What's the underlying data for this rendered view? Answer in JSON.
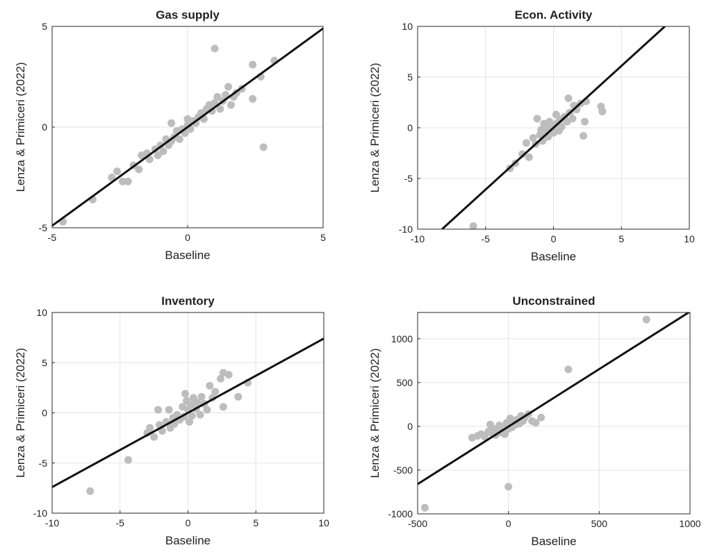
{
  "colors": {
    "points": "#bdbdbd",
    "line": "#111111",
    "grid": "#e3e3e3",
    "axes": "#262626"
  },
  "chart_data": [
    {
      "type": "scatter",
      "title": "Gas supply",
      "xlabel": "Baseline",
      "ylabel": "Lenza & Primiceri (2022)",
      "xlim": [
        -5,
        5
      ],
      "ylim": [
        -5,
        5
      ],
      "xticks": [
        -5,
        0,
        5
      ],
      "yticks": [
        -5,
        0,
        5
      ],
      "grid": true,
      "fit_line": [
        [
          -5,
          -4.9
        ],
        [
          5,
          4.9
        ]
      ],
      "points": [
        [
          -4.6,
          -4.7
        ],
        [
          -3.5,
          -3.6
        ],
        [
          -2.8,
          -2.5
        ],
        [
          -2.6,
          -2.2
        ],
        [
          -2.4,
          -2.7
        ],
        [
          -2.2,
          -2.7
        ],
        [
          -2.0,
          -1.9
        ],
        [
          -1.8,
          -2.1
        ],
        [
          -1.7,
          -1.4
        ],
        [
          -1.5,
          -1.3
        ],
        [
          -1.4,
          -1.6
        ],
        [
          -1.2,
          -1.1
        ],
        [
          -1.1,
          -1.4
        ],
        [
          -1.0,
          -0.9
        ],
        [
          -0.9,
          -1.2
        ],
        [
          -0.8,
          -0.6
        ],
        [
          -0.7,
          -0.9
        ],
        [
          -0.6,
          -0.7
        ],
        [
          -0.6,
          0.2
        ],
        [
          -0.5,
          -0.5
        ],
        [
          -0.4,
          -0.2
        ],
        [
          -0.3,
          -0.6
        ],
        [
          -0.2,
          -0.1
        ],
        [
          -0.1,
          -0.3
        ],
        [
          0.0,
          0.1
        ],
        [
          0.0,
          0.4
        ],
        [
          0.1,
          -0.1
        ],
        [
          0.2,
          0.3
        ],
        [
          0.3,
          0.2
        ],
        [
          0.4,
          0.5
        ],
        [
          0.5,
          0.7
        ],
        [
          0.6,
          0.4
        ],
        [
          0.7,
          0.9
        ],
        [
          0.8,
          1.1
        ],
        [
          0.9,
          0.8
        ],
        [
          1.0,
          3.9
        ],
        [
          1.0,
          1.2
        ],
        [
          1.1,
          1.5
        ],
        [
          1.2,
          0.9
        ],
        [
          1.3,
          1.3
        ],
        [
          1.4,
          1.6
        ],
        [
          1.5,
          2.0
        ],
        [
          1.6,
          1.1
        ],
        [
          1.7,
          1.5
        ],
        [
          1.8,
          1.7
        ],
        [
          2.0,
          1.9
        ],
        [
          2.4,
          3.1
        ],
        [
          2.4,
          1.4
        ],
        [
          2.7,
          2.5
        ],
        [
          2.8,
          -1.0
        ],
        [
          3.2,
          3.3
        ]
      ]
    },
    {
      "type": "scatter",
      "title": "Econ. Activity",
      "xlabel": "Baseline",
      "ylabel": "Lenza & Primiceri (2022)",
      "xlim": [
        -10,
        10
      ],
      "ylim": [
        -10,
        10
      ],
      "xticks": [
        -10,
        -5,
        0,
        5,
        10
      ],
      "yticks": [
        -10,
        -5,
        0,
        5,
        10
      ],
      "grid": true,
      "fit_line": [
        [
          -8.2,
          -10
        ],
        [
          8.2,
          10
        ]
      ],
      "points": [
        [
          -5.9,
          -9.7
        ],
        [
          -3.2,
          -4.0
        ],
        [
          -2.8,
          -3.5
        ],
        [
          -2.3,
          -2.6
        ],
        [
          -2.0,
          -1.5
        ],
        [
          -1.8,
          -2.9
        ],
        [
          -1.5,
          -1.0
        ],
        [
          -1.3,
          -1.6
        ],
        [
          -1.2,
          0.9
        ],
        [
          -1.0,
          -0.7
        ],
        [
          -0.9,
          -0.2
        ],
        [
          -0.8,
          -1.3
        ],
        [
          -0.7,
          0.4
        ],
        [
          -0.6,
          -0.4
        ],
        [
          -0.5,
          0.2
        ],
        [
          -0.4,
          -0.9
        ],
        [
          -0.3,
          0.6
        ],
        [
          -0.2,
          -0.1
        ],
        [
          -0.1,
          0.3
        ],
        [
          0.0,
          -0.5
        ],
        [
          0.1,
          0.2
        ],
        [
          0.2,
          1.3
        ],
        [
          0.3,
          0.5
        ],
        [
          0.4,
          -0.3
        ],
        [
          0.5,
          0.8
        ],
        [
          0.6,
          0.1
        ],
        [
          0.8,
          1.1
        ],
        [
          1.0,
          0.6
        ],
        [
          1.1,
          2.9
        ],
        [
          1.2,
          1.5
        ],
        [
          1.4,
          0.9
        ],
        [
          1.5,
          2.2
        ],
        [
          1.7,
          1.8
        ],
        [
          2.0,
          2.4
        ],
        [
          2.2,
          -0.8
        ],
        [
          2.3,
          0.6
        ],
        [
          2.4,
          2.6
        ],
        [
          3.5,
          2.1
        ],
        [
          3.6,
          1.6
        ]
      ]
    },
    {
      "type": "scatter",
      "title": "Inventory",
      "xlabel": "Baseline",
      "ylabel": "Lenza & Primiceri (2022)",
      "xlim": [
        -10,
        10
      ],
      "ylim": [
        -10,
        10
      ],
      "xticks": [
        -10,
        -5,
        0,
        5,
        10
      ],
      "yticks": [
        -10,
        -5,
        0,
        5,
        10
      ],
      "grid": true,
      "fit_line": [
        [
          -10,
          -7.4
        ],
        [
          10,
          7.4
        ]
      ],
      "points": [
        [
          -7.2,
          -7.8
        ],
        [
          -4.4,
          -4.7
        ],
        [
          -3.0,
          -2.0
        ],
        [
          -2.8,
          -1.5
        ],
        [
          -2.5,
          -2.4
        ],
        [
          -2.2,
          0.3
        ],
        [
          -2.1,
          -1.2
        ],
        [
          -1.9,
          -1.8
        ],
        [
          -1.6,
          -0.9
        ],
        [
          -1.4,
          0.3
        ],
        [
          -1.3,
          -1.5
        ],
        [
          -1.1,
          -0.5
        ],
        [
          -1.0,
          -1.1
        ],
        [
          -0.8,
          -0.2
        ],
        [
          -0.6,
          -0.7
        ],
        [
          -0.4,
          0.6
        ],
        [
          -0.3,
          -0.4
        ],
        [
          -0.2,
          1.9
        ],
        [
          -0.1,
          1.2
        ],
        [
          0.0,
          0.3
        ],
        [
          0.1,
          -0.9
        ],
        [
          0.2,
          0.8
        ],
        [
          0.3,
          -0.3
        ],
        [
          0.4,
          1.5
        ],
        [
          0.6,
          0.4
        ],
        [
          0.7,
          1.0
        ],
        [
          0.9,
          -0.2
        ],
        [
          1.0,
          1.6
        ],
        [
          1.2,
          0.9
        ],
        [
          1.4,
          0.3
        ],
        [
          1.6,
          2.7
        ],
        [
          1.8,
          1.5
        ],
        [
          2.0,
          2.1
        ],
        [
          2.4,
          3.4
        ],
        [
          2.6,
          4.0
        ],
        [
          2.6,
          0.6
        ],
        [
          3.0,
          3.8
        ],
        [
          3.7,
          1.6
        ],
        [
          4.4,
          3.0
        ]
      ]
    },
    {
      "type": "scatter",
      "title": "Unconstrained",
      "xlabel": "Baseline",
      "ylabel": "Lenza & Primiceri (2022)",
      "xlim": [
        -500,
        1000
      ],
      "ylim": [
        -1000,
        1300
      ],
      "xticks": [
        -500,
        0,
        500,
        1000
      ],
      "yticks": [
        -1000,
        -500,
        0,
        500,
        1000
      ],
      "grid": true,
      "fit_line": [
        [
          -500,
          -660
        ],
        [
          1000,
          1310
        ]
      ],
      "points": [
        [
          -460,
          -930
        ],
        [
          -200,
          -130
        ],
        [
          -170,
          -110
        ],
        [
          -150,
          -90
        ],
        [
          -130,
          -120
        ],
        [
          -110,
          -60
        ],
        [
          -100,
          20
        ],
        [
          -90,
          -80
        ],
        [
          -80,
          -30
        ],
        [
          -70,
          -100
        ],
        [
          -60,
          -50
        ],
        [
          -50,
          10
        ],
        [
          -40,
          -70
        ],
        [
          -30,
          -20
        ],
        [
          -20,
          -90
        ],
        [
          -10,
          40
        ],
        [
          0,
          -30
        ],
        [
          0,
          -690
        ],
        [
          10,
          90
        ],
        [
          20,
          -10
        ],
        [
          30,
          60
        ],
        [
          40,
          20
        ],
        [
          50,
          80
        ],
        [
          60,
          30
        ],
        [
          70,
          120
        ],
        [
          80,
          60
        ],
        [
          90,
          100
        ],
        [
          110,
          140
        ],
        [
          130,
          60
        ],
        [
          150,
          40
        ],
        [
          180,
          100
        ],
        [
          330,
          650
        ],
        [
          760,
          1220
        ]
      ]
    }
  ]
}
